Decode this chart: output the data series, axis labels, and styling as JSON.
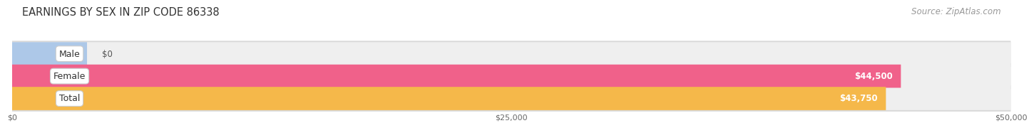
{
  "title": "EARNINGS BY SEX IN ZIP CODE 86338",
  "source": "Source: ZipAtlas.com",
  "categories": [
    "Male",
    "Female",
    "Total"
  ],
  "values": [
    0,
    44500,
    43750
  ],
  "bar_colors": [
    "#adc8e8",
    "#f0618a",
    "#f5b84a"
  ],
  "bar_bg_color": "#efefef",
  "value_labels": [
    "$0",
    "$44,500",
    "$43,750"
  ],
  "xlim": [
    0,
    50000
  ],
  "xtick_labels": [
    "$0",
    "$25,000",
    "$50,000"
  ],
  "xtick_vals": [
    0,
    25000,
    50000
  ],
  "title_fontsize": 10.5,
  "source_fontsize": 8.5,
  "bar_label_fontsize": 9,
  "value_label_fontsize": 8.5,
  "background_color": "#ffffff",
  "bar_bg_outer_color": "#e0e0e0"
}
